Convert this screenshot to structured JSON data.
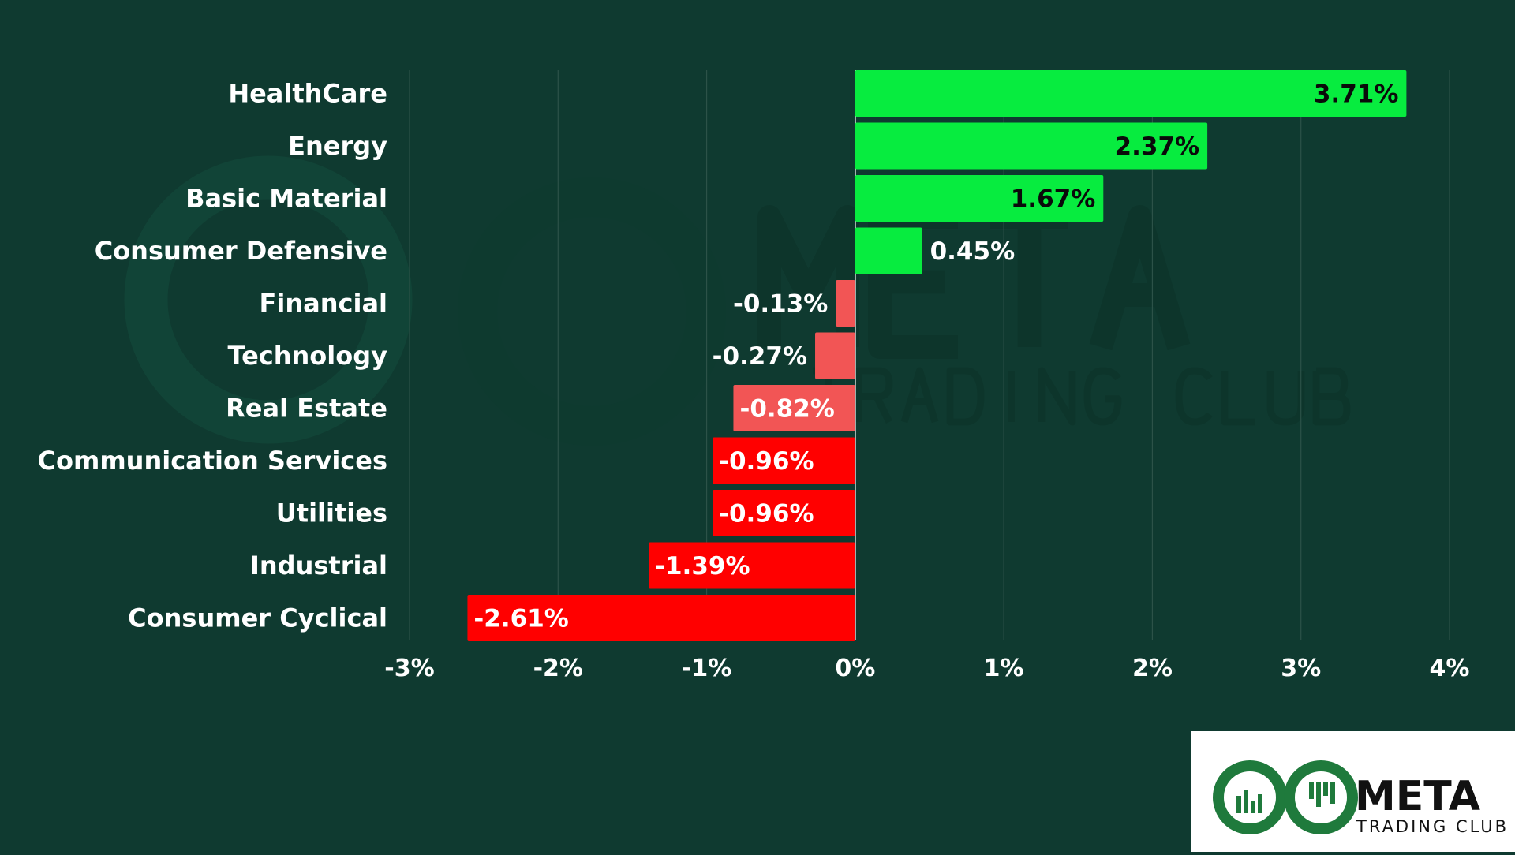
{
  "chart_data": {
    "type": "bar",
    "orientation": "horizontal",
    "categories": [
      "HealthCare",
      "Energy",
      "Basic Material",
      "Consumer Defensive",
      "Financial",
      "Technology",
      "Real Estate",
      "Communication Services",
      "Utilities",
      "Industrial",
      "Consumer Cyclical"
    ],
    "values": [
      3.71,
      2.37,
      1.67,
      0.45,
      -0.13,
      -0.27,
      -0.82,
      -0.96,
      -0.96,
      -1.39,
      -2.61
    ],
    "value_labels": [
      "3.71%",
      "2.37%",
      "1.67%",
      "0.45%",
      "-0.13%",
      "-0.27%",
      "-0.82%",
      "-0.96%",
      "-0.96%",
      "-1.39%",
      "-2.61%"
    ],
    "xlim": [
      -3,
      4
    ],
    "x_ticks": [
      -3,
      -2,
      -1,
      0,
      1,
      2,
      3,
      4
    ],
    "x_tick_labels": [
      "-3%",
      "-2%",
      "-1%",
      "0%",
      "1%",
      "2%",
      "3%",
      "4%"
    ],
    "grid": "vertical",
    "title": "",
    "xlabel": "",
    "ylabel": "",
    "colors": {
      "background": "#0f3a30",
      "positive": "#07ec3f",
      "negative_strong": "#ff0000",
      "negative_light": "#f25555",
      "grid": "#2c5248"
    }
  },
  "watermark": {
    "brand": "META",
    "tagline": "TRADING CLUB"
  },
  "logo": {
    "brand": "META",
    "tagline": "TRADING CLUB"
  }
}
